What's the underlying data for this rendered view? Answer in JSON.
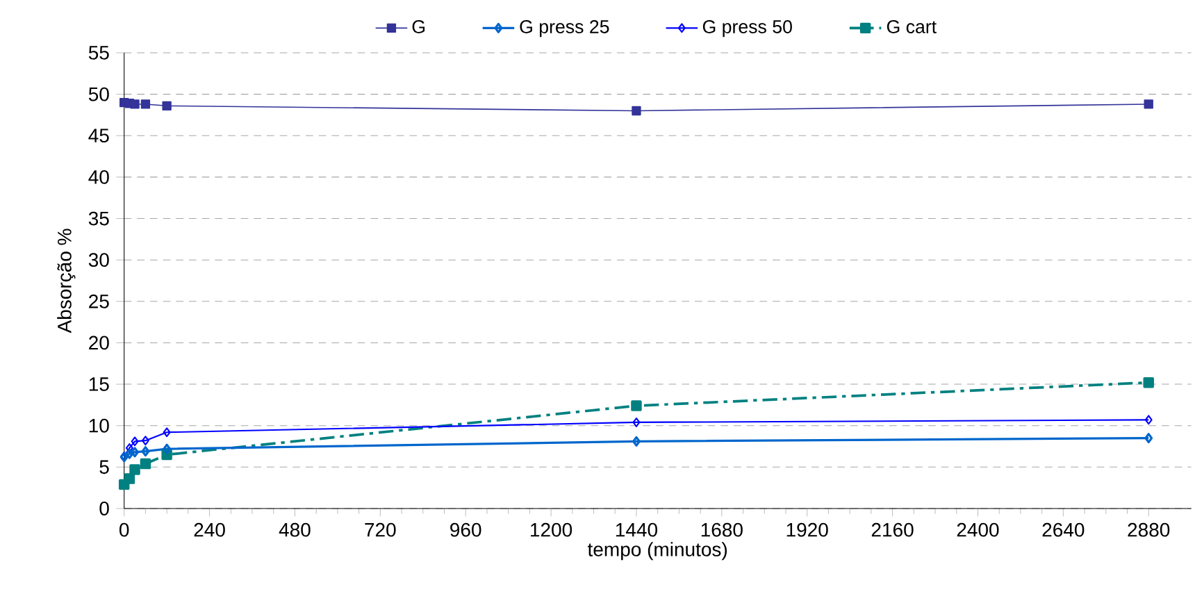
{
  "chart_data": {
    "type": "line",
    "xlabel": "tempo (minutos)",
    "ylabel": "Absorção %",
    "xlim": [
      0,
      3000
    ],
    "ylim": [
      0,
      55
    ],
    "xticks": [
      0,
      240,
      480,
      720,
      960,
      1200,
      1440,
      1680,
      1920,
      2160,
      2400,
      2640,
      2880
    ],
    "yticks": [
      0,
      5,
      10,
      15,
      20,
      25,
      30,
      35,
      40,
      45,
      50,
      55
    ],
    "grid": "y",
    "legend": "top",
    "series": [
      {
        "name": "G",
        "color": "#333399",
        "marker": "square",
        "line_style": "solid",
        "x": [
          0,
          15,
          30,
          60,
          120,
          1440,
          2880
        ],
        "values": [
          49,
          48.9,
          48.8,
          48.8,
          48.6,
          48,
          48.8
        ]
      },
      {
        "name": "G press 25",
        "color": "#0066cc",
        "marker": "diamond",
        "line_style": "solid",
        "x": [
          0,
          15,
          30,
          60,
          120,
          1440,
          2880
        ],
        "values": [
          6.2,
          6.6,
          6.8,
          6.9,
          7.2,
          8.1,
          8.5
        ]
      },
      {
        "name": "G press 50",
        "color": "#0000ff",
        "marker": "diamond",
        "line_style": "solid",
        "x": [
          0,
          15,
          30,
          60,
          120,
          1440,
          2880
        ],
        "values": [
          6.3,
          7.3,
          8.1,
          8.2,
          9.2,
          10.4,
          10.7
        ]
      },
      {
        "name": "G cart",
        "color": "#008080",
        "marker": "square",
        "line_style": "dashed",
        "x": [
          0,
          15,
          30,
          60,
          120,
          1440,
          2880
        ],
        "values": [
          2.9,
          3.6,
          4.7,
          5.4,
          6.5,
          12.4,
          15.2
        ]
      }
    ]
  }
}
